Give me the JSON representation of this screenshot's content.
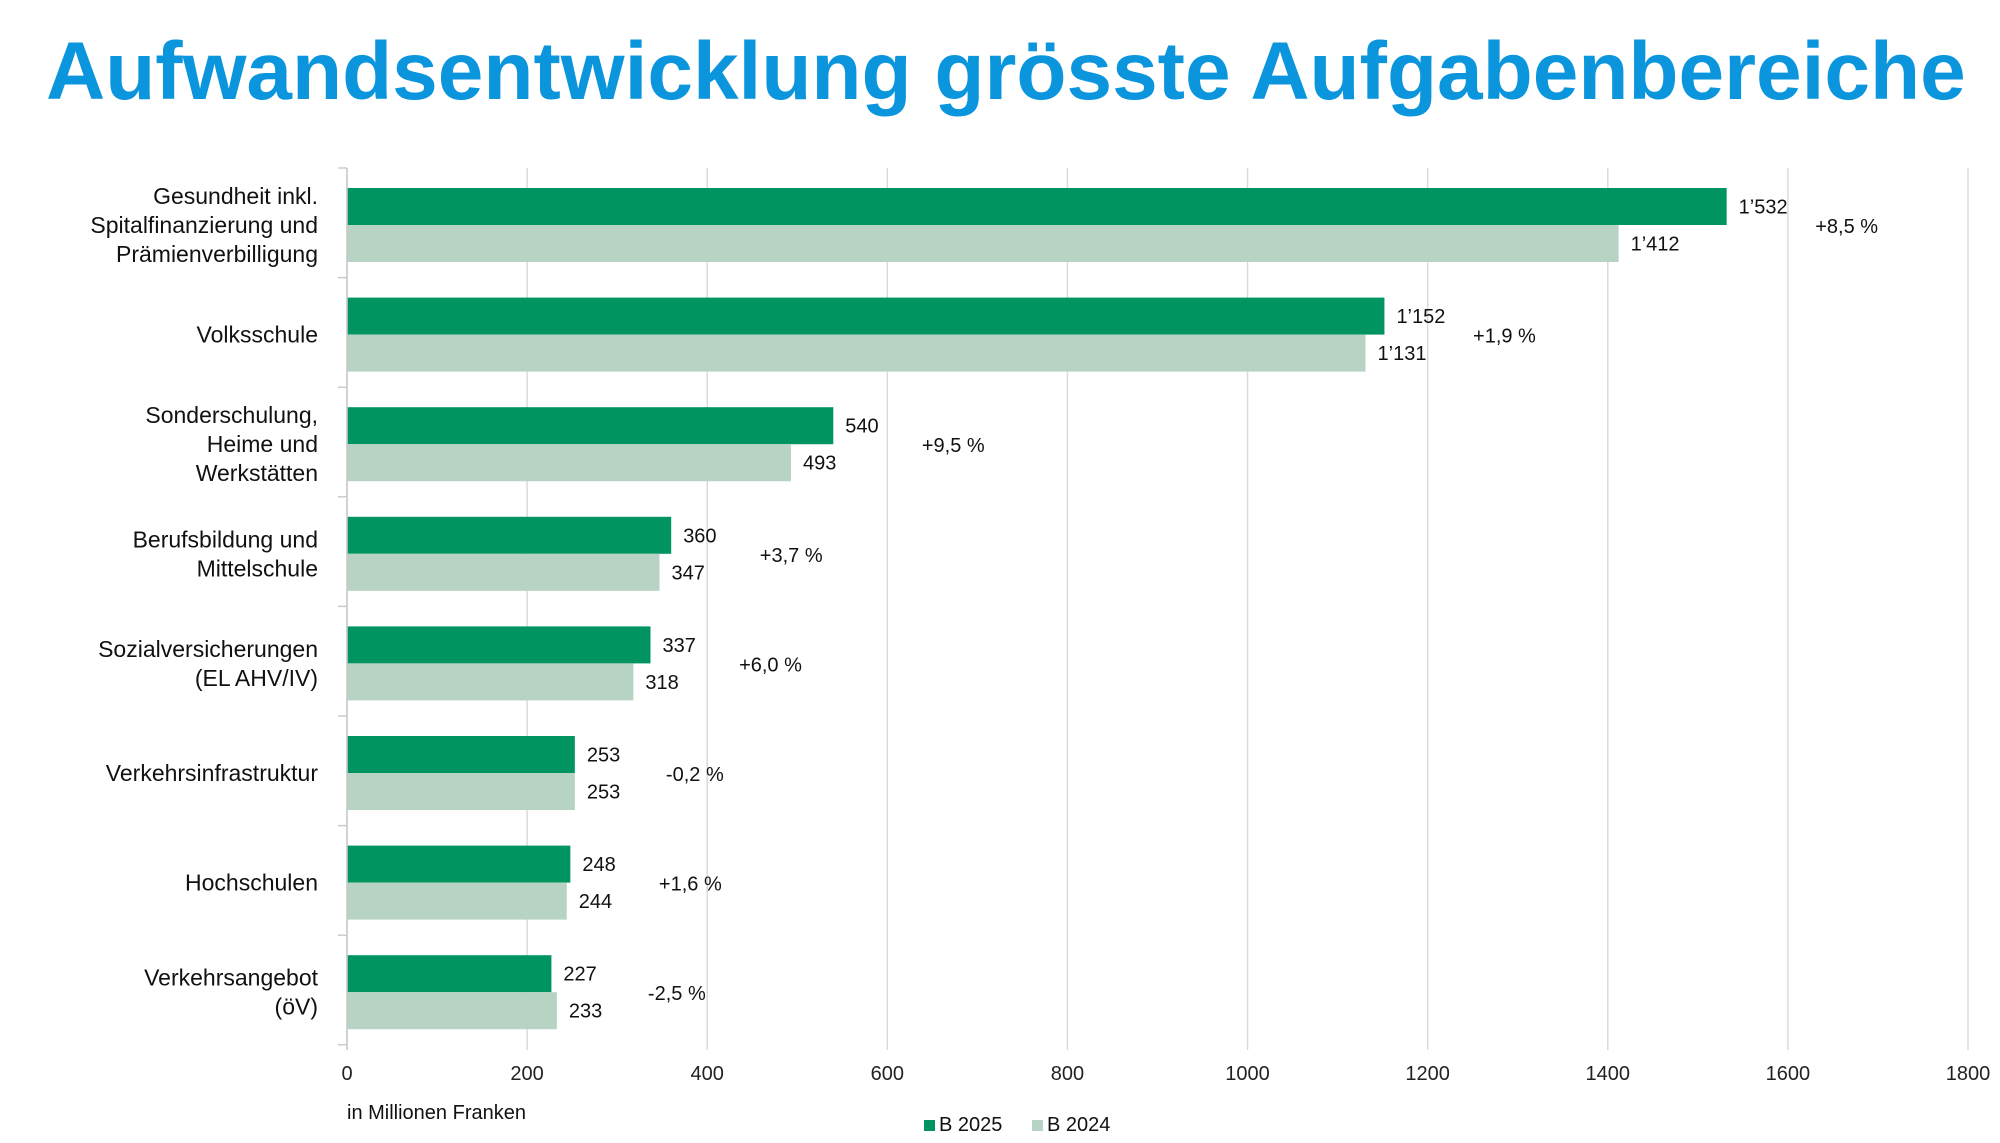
{
  "chart_data": {
    "type": "bar",
    "orientation": "horizontal",
    "title": "Aufwandsentwicklung grösste Aufgabenbereiche",
    "xlabel": "in Millionen Franken",
    "ylabel": "",
    "xlim": [
      0,
      1800
    ],
    "xticks": [
      0,
      200,
      400,
      600,
      800,
      1000,
      1200,
      1400,
      1600,
      1800
    ],
    "grid": true,
    "legend_position": "bottom",
    "categories": [
      [
        "Gesundheit inkl.",
        "Spitalfinanzierung und",
        "Prämienverbilligung"
      ],
      [
        "Volksschule"
      ],
      [
        "Sonderschulung,",
        "Heime und",
        "Werkstätten"
      ],
      [
        "Berufsbildung und",
        "Mittelschule"
      ],
      [
        "Sozialversicherungen",
        "(EL AHV/IV)"
      ],
      [
        "Verkehrsinfrastruktur"
      ],
      [
        "Hochschulen"
      ],
      [
        "Verkehrsangebot",
        "(öV)"
      ]
    ],
    "series": [
      {
        "name": "B 2025",
        "color": "#009460",
        "values": [
          1532,
          1152,
          540,
          360,
          337,
          253,
          248,
          227
        ],
        "labels": [
          "1’532",
          "1’152",
          "540",
          "360",
          "337",
          "253",
          "248",
          "227"
        ]
      },
      {
        "name": "B 2024",
        "color": "#b6d3c4",
        "values": [
          1412,
          1131,
          493,
          347,
          318,
          253,
          244,
          233
        ],
        "labels": [
          "1’412",
          "1’131",
          "493",
          "347",
          "318",
          "253",
          "244",
          "233"
        ]
      }
    ],
    "changes": [
      "+8,5 %",
      "+1,9 %",
      "+9,5 %",
      "+3,7 %",
      "+6,0 %",
      "-0,2 %",
      "+1,6 %",
      "-2,5 %"
    ]
  }
}
